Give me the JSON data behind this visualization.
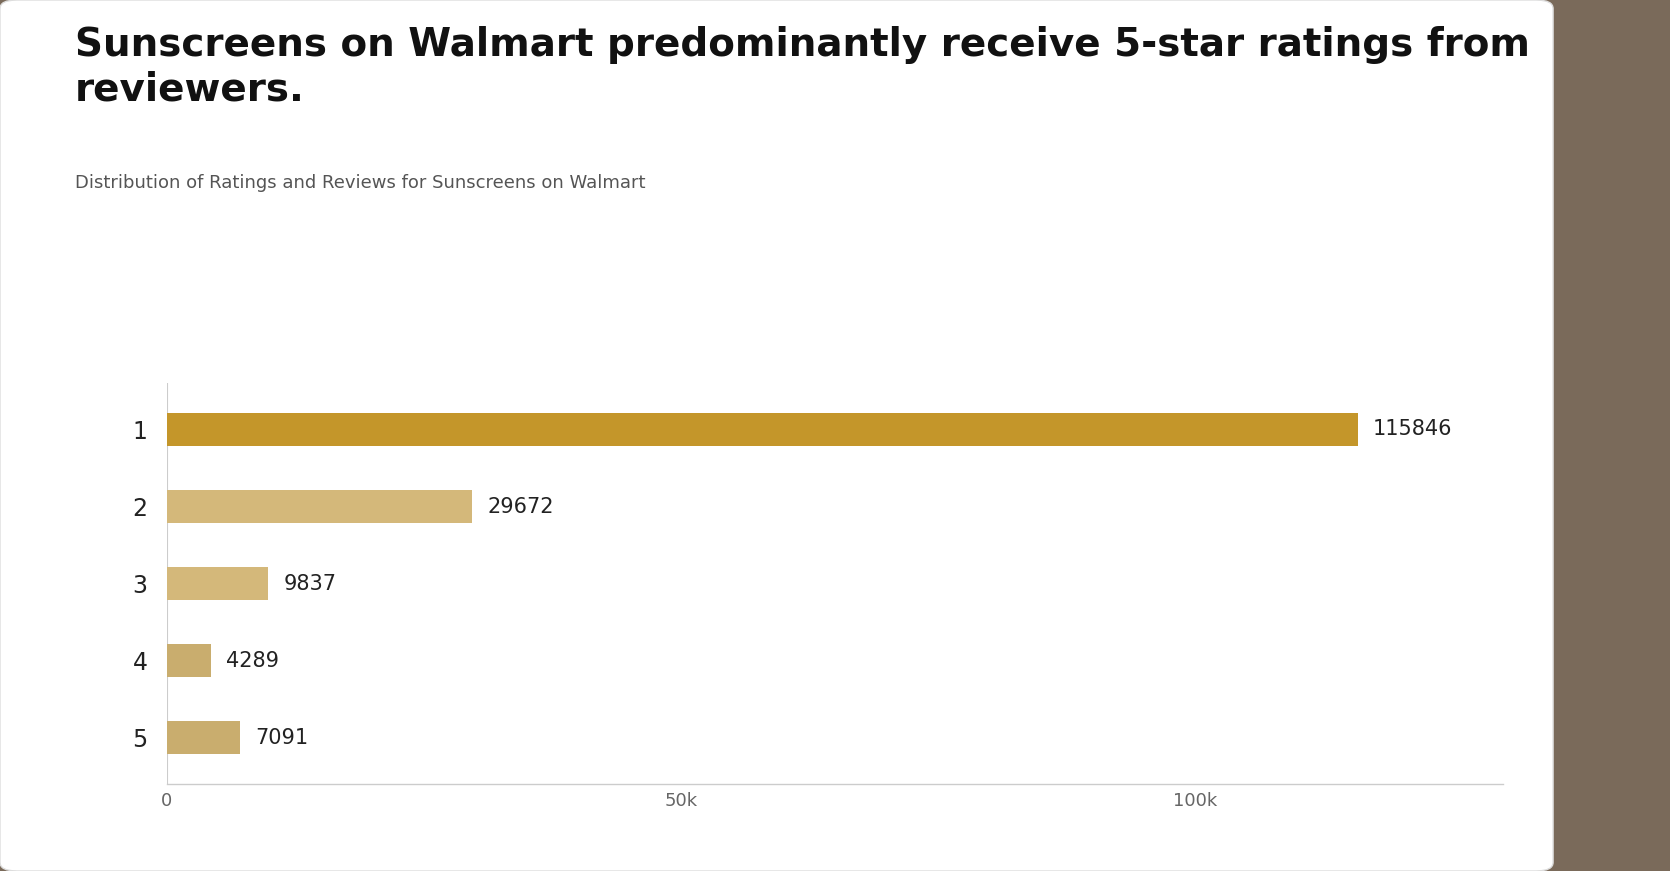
{
  "title": "Sunscreens on Walmart predominantly receive 5-star ratings from\nreviewers.",
  "subtitle": "Distribution of Ratings and Reviews for Sunscreens on Walmart",
  "categories": [
    "1",
    "2",
    "3",
    "4",
    "5"
  ],
  "values": [
    115846,
    29672,
    9837,
    4289,
    7091
  ],
  "bar_colors": [
    "#C4962A",
    "#D4B87A",
    "#D4B87A",
    "#C9AD6E",
    "#C9AD6E"
  ],
  "value_labels": [
    "115846",
    "29672",
    "9837",
    "4289",
    "7091"
  ],
  "xlim": [
    0,
    130000
  ],
  "xticks": [
    0,
    50000,
    100000
  ],
  "xtick_labels": [
    "0",
    "50k",
    "100k"
  ],
  "card_color": "#ffffff",
  "outer_bg": "#7a6a5a",
  "bar_height": 0.42,
  "title_fontsize": 28,
  "subtitle_fontsize": 13,
  "tick_fontsize": 13,
  "ytick_fontsize": 17,
  "value_label_fontsize": 15
}
